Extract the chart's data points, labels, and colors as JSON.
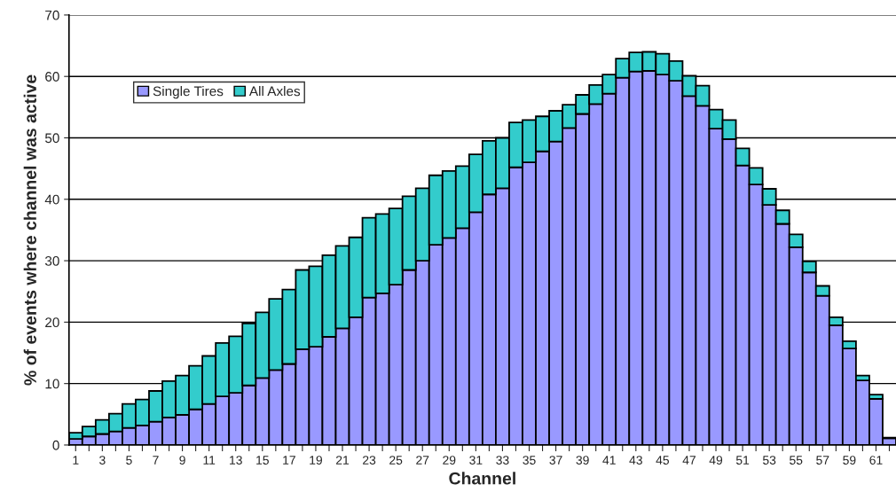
{
  "chart_data": {
    "type": "bar",
    "stacked": true,
    "xlabel": "Channel",
    "ylabel": "% of events where channel was active",
    "categories": [
      "1",
      null,
      "3",
      null,
      "5",
      null,
      "7",
      null,
      "9",
      null,
      "11",
      null,
      "13",
      null,
      "15",
      null,
      "17",
      null,
      "19",
      null,
      "21",
      null,
      "23",
      null,
      "25",
      null,
      "27",
      null,
      "29",
      null,
      "31",
      null,
      "33",
      null,
      "35",
      null,
      "37",
      null,
      "39",
      null,
      "41",
      null,
      "43",
      null,
      "45",
      null,
      "47",
      null,
      "49",
      null,
      "51",
      null,
      "53",
      null,
      "55",
      null,
      "57",
      null,
      "59",
      null,
      "61",
      null
    ],
    "series": [
      {
        "name": "Single Tires",
        "color": "#9999ff",
        "values": [
          1.0,
          1.4,
          1.8,
          2.2,
          2.8,
          3.2,
          3.8,
          4.5,
          4.9,
          5.8,
          6.7,
          7.9,
          8.5,
          9.7,
          10.9,
          12.2,
          13.2,
          15.6,
          16.0,
          17.6,
          19.0,
          20.8,
          24.0,
          24.7,
          26.1,
          28.5,
          30.0,
          32.6,
          33.7,
          35.3,
          37.9,
          40.8,
          41.8,
          45.2,
          46.0,
          47.8,
          49.4,
          51.6,
          53.9,
          55.5,
          57.2,
          59.8,
          60.8,
          60.9,
          60.3,
          59.3,
          56.8,
          55.2,
          51.5,
          49.8,
          45.5,
          42.4,
          39.1,
          36.0,
          32.2,
          28.1,
          24.3,
          19.5,
          15.7,
          10.5,
          7.5,
          1.1
        ]
      },
      {
        "name": "All Axles",
        "color": "#33cccc",
        "values": [
          1.0,
          1.6,
          2.3,
          2.9,
          3.9,
          4.2,
          5.0,
          5.9,
          6.4,
          7.1,
          7.8,
          8.7,
          9.2,
          10.1,
          10.7,
          11.6,
          12.1,
          12.9,
          13.1,
          13.3,
          13.4,
          13.0,
          13.0,
          12.9,
          12.4,
          12.0,
          11.8,
          11.3,
          10.9,
          10.1,
          9.4,
          8.7,
          8.2,
          7.3,
          6.9,
          5.7,
          5.0,
          3.8,
          3.1,
          3.1,
          3.1,
          3.1,
          3.1,
          3.1,
          3.4,
          3.2,
          3.3,
          3.3,
          3.1,
          3.1,
          2.8,
          2.7,
          2.6,
          2.2,
          2.1,
          1.8,
          1.6,
          1.3,
          1.2,
          0.8,
          0.7,
          0.1
        ]
      }
    ],
    "ylim": [
      0,
      70
    ],
    "yticks": [
      0,
      10,
      20,
      30,
      40,
      50,
      60,
      70
    ],
    "grid": "y",
    "legend": "top left"
  }
}
